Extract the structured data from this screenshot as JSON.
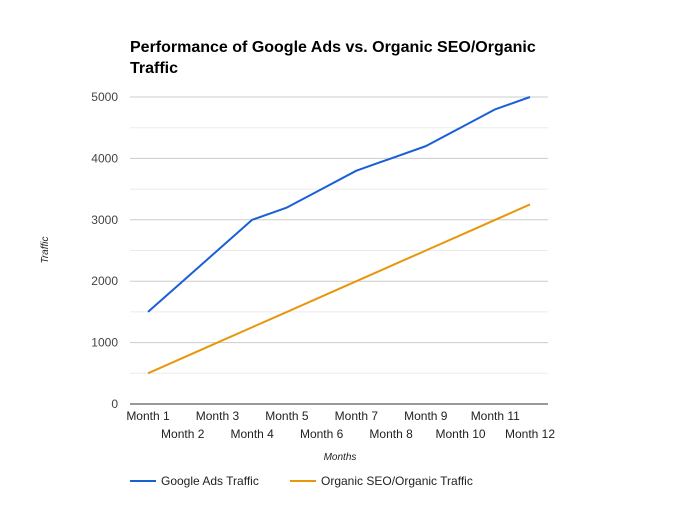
{
  "chart_data": {
    "type": "line",
    "title_lines": [
      "Performance of Google Ads vs. Organic SEO/Organic",
      "Traffic"
    ],
    "xlabel": "Months",
    "ylabel": "Traffic",
    "categories": [
      "Month 1",
      "Month 2",
      "Month 3",
      "Month 4",
      "Month 5",
      "Month 6",
      "Month 7",
      "Month 8",
      "Month 9",
      "Month 10",
      "Month 11",
      "Month 12"
    ],
    "ylim": [
      0,
      5000
    ],
    "yticks": [
      0,
      1000,
      2000,
      3000,
      4000,
      5000
    ],
    "grid": true,
    "legend": "bottom",
    "series": [
      {
        "name": "Google Ads Traffic",
        "color": "#1a5fd6",
        "values": [
          1500,
          2000,
          2500,
          3000,
          3200,
          3500,
          3800,
          4000,
          4200,
          4500,
          4800,
          5000
        ]
      },
      {
        "name": "Organic SEO/Organic Traffic",
        "color": "#e8960c",
        "values": [
          500,
          750,
          1000,
          1250,
          1500,
          1750,
          2000,
          2250,
          2500,
          2750,
          3000,
          3250
        ]
      }
    ]
  }
}
